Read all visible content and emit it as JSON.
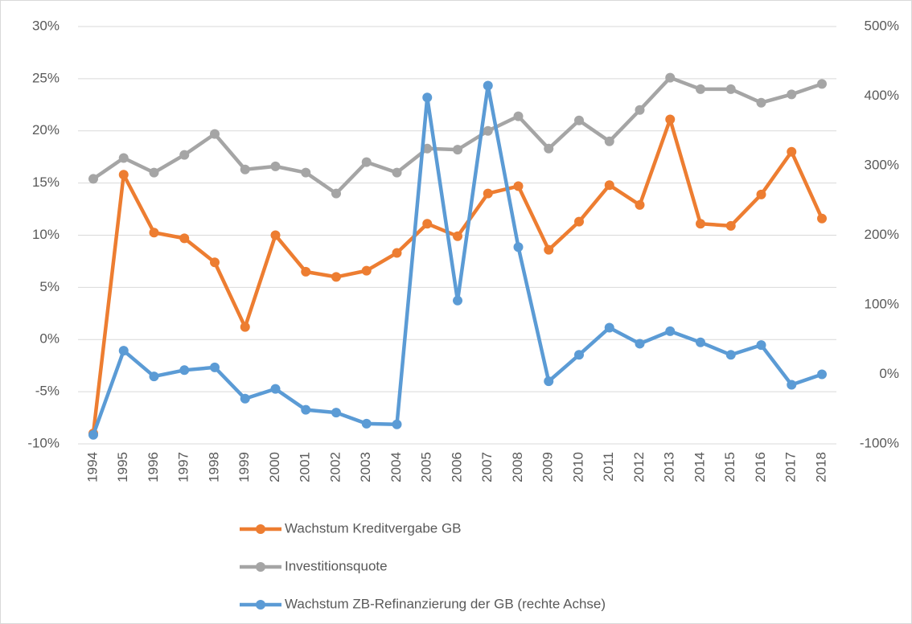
{
  "chart_data": {
    "type": "line",
    "categories": [
      "1994",
      "1995",
      "1996",
      "1997",
      "1998",
      "1999",
      "2000",
      "2001",
      "2002",
      "2003",
      "2004",
      "2005",
      "2006",
      "2007",
      "2008",
      "2009",
      "2010",
      "2011",
      "2012",
      "2013",
      "2014",
      "2015",
      "2016",
      "2017",
      "2018"
    ],
    "series": [
      {
        "name": "Wachstum Kreditvergabe GB",
        "color": "#ed7d31",
        "values": [
          -9,
          15.8,
          10.25,
          9.7,
          7.4,
          1.2,
          10,
          6.5,
          6.0,
          6.6,
          8.3,
          11.1,
          9.9,
          14.0,
          14.7,
          8.6,
          11.3,
          14.8,
          12.9,
          21.1,
          11.1,
          10.9,
          13.9,
          18.0,
          11.6
        ]
      },
      {
        "name": "Investitionsquote",
        "color": "#a5a5a5",
        "values": [
          15.4,
          17.4,
          16.0,
          17.7,
          19.7,
          16.3,
          16.6,
          16.0,
          14.0,
          17.0,
          16.0,
          18.3,
          18.2,
          20.0,
          21.4,
          18.3,
          21.0,
          19.0,
          22.0,
          25.1,
          24.0,
          24.0,
          22.7,
          23.5,
          24.5
        ]
      },
      {
        "name": "Wachstum ZB-Refinanzierung der GB (rechte Achse)",
        "color": "#5b9bd5",
        "axis": "y2",
        "values": [
          -87,
          34,
          -3,
          6,
          10,
          -35,
          -21,
          -51,
          -55,
          -71,
          -72,
          398,
          106,
          415,
          183,
          -10,
          28,
          67,
          44,
          62,
          46,
          28,
          42,
          -15,
          0
        ]
      }
    ],
    "ylim": [
      -10,
      30
    ],
    "yticks": [
      {
        "value": -10,
        "label": "-10%"
      },
      {
        "value": -5,
        "label": "-5%"
      },
      {
        "value": 0,
        "label": "0%"
      },
      {
        "value": 5,
        "label": "5%"
      },
      {
        "value": 10,
        "label": "10%"
      },
      {
        "value": 15,
        "label": "15%"
      },
      {
        "value": 20,
        "label": "20%"
      },
      {
        "value": 25,
        "label": "25%"
      },
      {
        "value": 30,
        "label": "30%"
      }
    ],
    "y2lim": [
      -100,
      500
    ],
    "y2ticks": [
      {
        "value": -100,
        "label": "-100%"
      },
      {
        "value": 0,
        "label": "0%"
      },
      {
        "value": 100,
        "label": "100%"
      },
      {
        "value": 200,
        "label": "200%"
      },
      {
        "value": 300,
        "label": "300%"
      },
      {
        "value": 400,
        "label": "400%"
      },
      {
        "value": 500,
        "label": "500%"
      }
    ],
    "grid": true,
    "legend": "bottom"
  }
}
